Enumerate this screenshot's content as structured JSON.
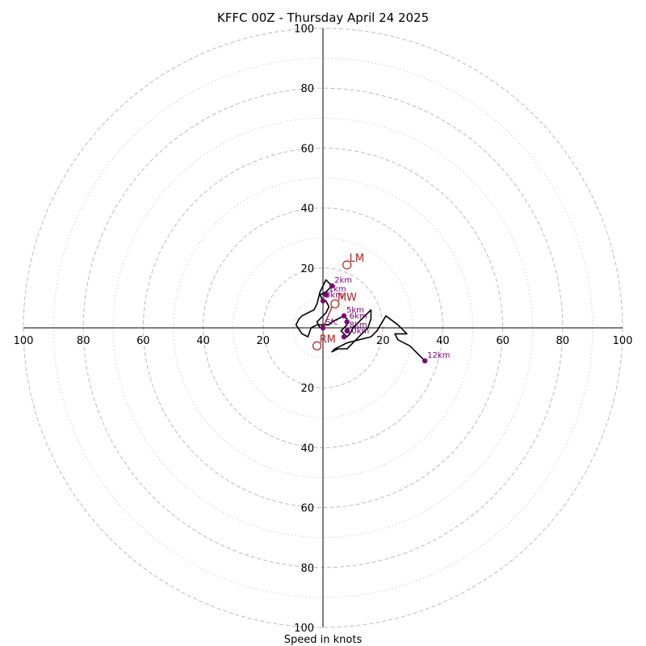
{
  "chart_data": {
    "type": "hodograph",
    "title": "KFFC 00Z - Thursday April 24 2025",
    "xlabel": "Speed in knots",
    "max_speed": 100,
    "ring_major": [
      20,
      40,
      60,
      80,
      100
    ],
    "ring_minor": [
      10,
      30,
      50,
      70,
      90
    ],
    "tick_values": [
      20,
      40,
      60,
      80,
      100
    ],
    "tick_labels": {
      "left": [
        "20",
        "40",
        "60",
        "80",
        "100"
      ],
      "right": [
        "20",
        "40",
        "60",
        "80",
        "100"
      ],
      "top": [
        "20",
        "40",
        "60",
        "80",
        "100"
      ],
      "bottom": [
        "20",
        "40",
        "60",
        "80",
        "100"
      ]
    },
    "hodograph_trace": [
      [
        -1,
        0
      ],
      [
        -2,
        2
      ],
      [
        0,
        4
      ],
      [
        1,
        5
      ],
      [
        2,
        7
      ],
      [
        1,
        9
      ],
      [
        0,
        9
      ],
      [
        -1,
        11
      ],
      [
        1,
        12
      ],
      [
        3,
        14
      ],
      [
        1,
        16
      ],
      [
        0,
        14
      ],
      [
        -1,
        12
      ],
      [
        -2,
        8
      ],
      [
        -3,
        6
      ],
      [
        -5,
        5
      ],
      [
        -7,
        4
      ],
      [
        -8,
        3
      ],
      [
        -9,
        1
      ],
      [
        -7,
        -2
      ],
      [
        -5,
        -3
      ],
      [
        -4,
        0
      ],
      [
        -2,
        1
      ],
      [
        0,
        1
      ],
      [
        2,
        1
      ],
      [
        3,
        2
      ],
      [
        5,
        3
      ],
      [
        7,
        4
      ],
      [
        8,
        3
      ],
      [
        8,
        1
      ],
      [
        6,
        -1
      ],
      [
        8,
        -3
      ],
      [
        9,
        -2
      ],
      [
        10,
        0
      ],
      [
        12,
        2
      ],
      [
        14,
        4
      ],
      [
        16,
        6
      ],
      [
        16,
        3
      ],
      [
        15,
        0
      ],
      [
        12,
        -3
      ],
      [
        10,
        -5
      ],
      [
        8,
        -7
      ],
      [
        5,
        -7
      ],
      [
        3,
        -8
      ],
      [
        4,
        -7
      ],
      [
        6,
        -6
      ],
      [
        8,
        -5
      ],
      [
        12,
        -4
      ],
      [
        16,
        -3
      ],
      [
        18,
        -1
      ],
      [
        21,
        4
      ],
      [
        25,
        1
      ],
      [
        28,
        -2
      ],
      [
        24,
        -2
      ],
      [
        25,
        -4
      ],
      [
        27,
        -5
      ],
      [
        29,
        -6
      ],
      [
        31,
        -8
      ],
      [
        34,
        -11
      ]
    ],
    "height_points": [
      {
        "label": "Sfc",
        "u": 0,
        "v": 0
      },
      {
        "label": "1km",
        "u": 1,
        "v": 11
      },
      {
        "label": "2km",
        "u": 3,
        "v": 14
      },
      {
        "label": "3km",
        "u": 0,
        "v": 9
      },
      {
        "label": "5km",
        "u": 7,
        "v": 4
      },
      {
        "label": "6km",
        "u": 8,
        "v": 2
      },
      {
        "label": "8km",
        "u": 8,
        "v": -1
      },
      {
        "label": "10km",
        "u": 7,
        "v": -3
      },
      {
        "label": "12km",
        "u": 34,
        "v": -11
      }
    ],
    "storm_motion": [
      {
        "label": "LM",
        "u": 8,
        "v": 21
      },
      {
        "label": "MW",
        "u": 4,
        "v": 8
      },
      {
        "label": "RM",
        "u": -2,
        "v": -6
      }
    ],
    "shear_vector": {
      "u_from": 0,
      "v_from": 0,
      "u_to": 3,
      "v_to": 7
    },
    "colors": {
      "trace": "#000000",
      "height_marker": "#800080",
      "storm_marker": "#b22222",
      "grid": "#bbbbbb"
    }
  }
}
